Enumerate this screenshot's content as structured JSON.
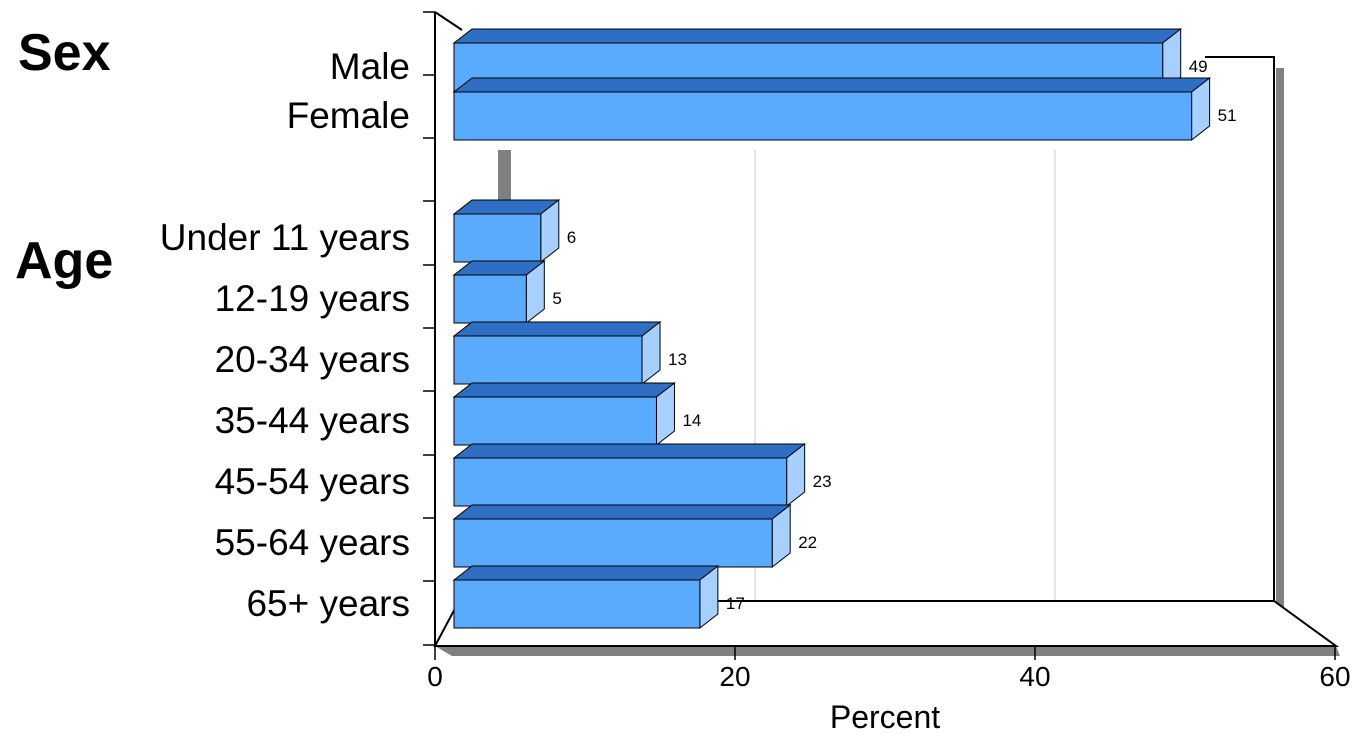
{
  "chart_data": {
    "type": "bar",
    "orientation": "horizontal",
    "groups": [
      {
        "label": "Sex",
        "categories": [
          "Male",
          "Female"
        ],
        "values": [
          49,
          51
        ]
      },
      {
        "label": "Age",
        "categories": [
          "Under 11 years",
          "12-19 years",
          "20-34 years",
          "35-44 years",
          "45-54 years",
          "55-64 years",
          "65+ years"
        ],
        "values": [
          6,
          5,
          13,
          14,
          23,
          22,
          17
        ]
      }
    ],
    "xlabel": "Percent",
    "xlim": [
      0,
      60
    ],
    "xticks": [
      "0",
      "20",
      "40",
      "60"
    ],
    "grid": true,
    "style": "3d",
    "colors": {
      "bar_front": "#5aaaff",
      "bar_top": "#2e6fc4",
      "bar_side": "#a8d0ff",
      "wall_shadow": "#808080"
    }
  }
}
